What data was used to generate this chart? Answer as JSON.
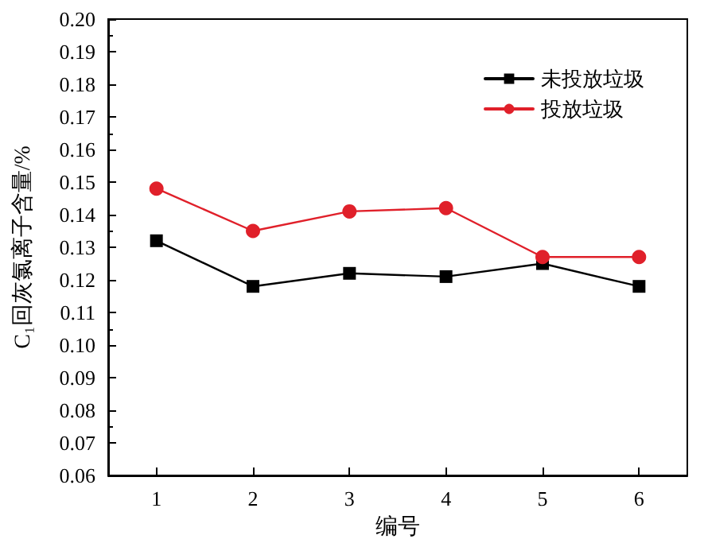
{
  "chart_data": {
    "type": "line",
    "xlabel": "编号",
    "ylabel": "C₁回灰氯离子含量/%",
    "x": [
      1,
      2,
      3,
      4,
      5,
      6
    ],
    "series": [
      {
        "name": "未投放垃圾",
        "color": "#000000",
        "marker": "square",
        "values": [
          0.132,
          0.118,
          0.122,
          0.121,
          0.125,
          0.118
        ]
      },
      {
        "name": "投放垃圾",
        "color": "#e0202a",
        "marker": "circle",
        "values": [
          0.148,
          0.135,
          0.141,
          0.142,
          0.127,
          0.127
        ]
      }
    ],
    "xlim": [
      0.5,
      6.5
    ],
    "xticks": [
      1,
      2,
      3,
      4,
      5,
      6
    ],
    "ylim": [
      0.06,
      0.2
    ],
    "yticks": [
      0.06,
      0.07,
      0.08,
      0.09,
      {
        "value": 0.1,
        "label": "0.10"
      },
      0.11,
      0.12,
      0.13,
      0.14,
      0.15,
      0.16,
      0.17,
      0.18,
      0.19,
      {
        "value": 0.2,
        "label": "0.20"
      }
    ],
    "grid": false,
    "legend": "top right",
    "line_style": "solid"
  }
}
